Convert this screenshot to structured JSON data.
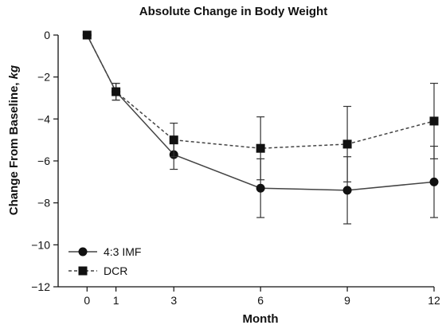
{
  "chart_data": {
    "type": "line",
    "title": "Absolute Change in Body Weight",
    "xlabel": "Month",
    "ylabel_main": "Change From Baseline, ",
    "ylabel_unit": "kg",
    "x_ticks": [
      0,
      1,
      3,
      6,
      9,
      12
    ],
    "y_ticks": [
      0,
      -2,
      -4,
      -6,
      -8,
      -10,
      -12
    ],
    "y_tick_labels": [
      "0",
      "−2",
      "−4",
      "−6",
      "−8",
      "−10",
      "−12"
    ],
    "xlim": [
      -1,
      12
    ],
    "ylim": [
      -12,
      0
    ],
    "grid": false,
    "legend_position": "bottom-left",
    "series": [
      {
        "name": "4:3 IMF",
        "marker": "circle",
        "line_style": "solid",
        "color": "#444444",
        "x": [
          0,
          1,
          3,
          6,
          9,
          12
        ],
        "y": [
          0,
          -2.7,
          -5.7,
          -7.3,
          -7.4,
          -7.0
        ],
        "err": [
          0,
          0.4,
          0.7,
          1.4,
          1.6,
          1.7
        ]
      },
      {
        "name": "DCR",
        "marker": "square",
        "line_style": "dashed",
        "color": "#444444",
        "x": [
          0,
          1,
          3,
          6,
          9,
          12
        ],
        "y": [
          0,
          -2.7,
          -5.0,
          -5.4,
          -5.2,
          -4.1
        ],
        "err": [
          0,
          0.4,
          0.8,
          1.5,
          1.8,
          1.8
        ]
      }
    ]
  }
}
